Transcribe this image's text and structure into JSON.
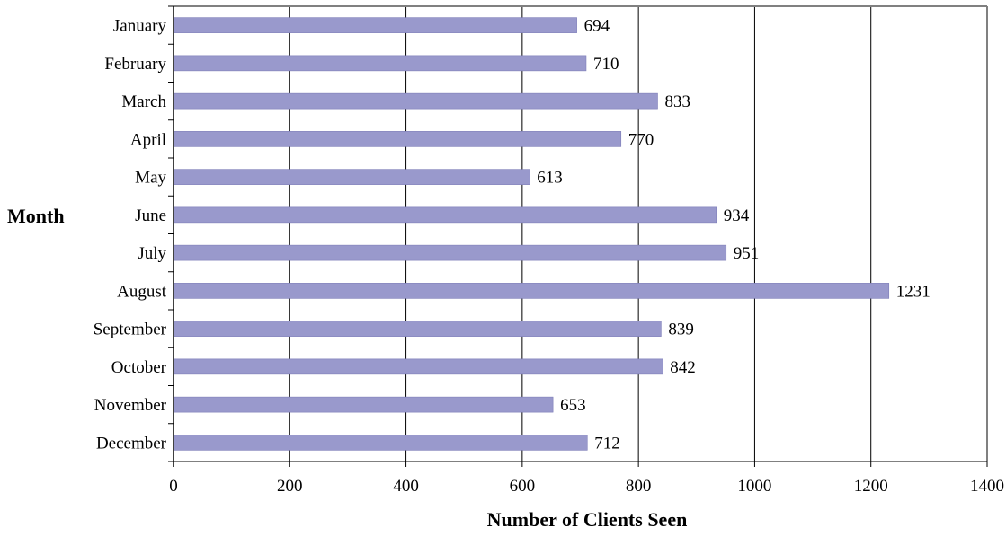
{
  "chart_data": {
    "type": "bar",
    "orientation": "horizontal",
    "categories": [
      "January",
      "February",
      "March",
      "April",
      "May",
      "June",
      "July",
      "August",
      "September",
      "October",
      "November",
      "December"
    ],
    "values": [
      694,
      710,
      833,
      770,
      613,
      934,
      951,
      1231,
      839,
      842,
      653,
      712
    ],
    "xlabel": "Number of Clients Seen",
    "ylabel": "Month",
    "xlim": [
      0,
      1400
    ],
    "xticks": [
      0,
      200,
      400,
      600,
      800,
      1000,
      1200,
      1400
    ],
    "grid": true,
    "legend": "none",
    "data_labels": true,
    "colors": {
      "bar": "#9999cc",
      "bar_stroke": "#7d7db8",
      "grid": "#000000",
      "frame": "#808080",
      "axis": "#000000",
      "text": "#000000"
    }
  }
}
